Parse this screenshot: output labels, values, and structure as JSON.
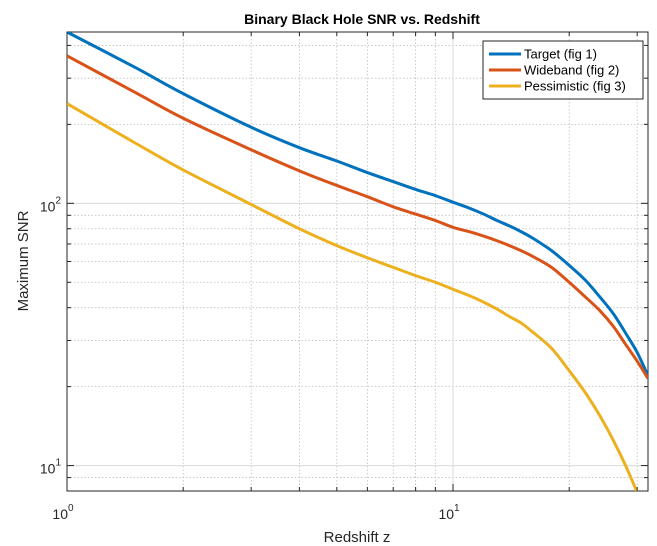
{
  "chart_data": {
    "type": "line",
    "title": "Binary Black Hole SNR vs. Redshift",
    "xlabel": "Redshift z",
    "ylabel": "Maximum SNR",
    "xscale": "log",
    "yscale": "log",
    "xlim": [
      1,
      32
    ],
    "ylim": [
      8,
      450
    ],
    "grid": true,
    "legend_position": "top-right",
    "x_ticks": [
      {
        "value": 1,
        "base": "10",
        "exp": "0"
      },
      {
        "value": 10,
        "base": "10",
        "exp": "1"
      }
    ],
    "y_ticks": [
      {
        "value": 10,
        "base": "10",
        "exp": "1"
      },
      {
        "value": 100,
        "base": "10",
        "exp": "2"
      }
    ],
    "series": [
      {
        "name": "Target (fig 1)",
        "color": "#0072BD",
        "points": [
          [
            1,
            450
          ],
          [
            1.5,
            330
          ],
          [
            2,
            262
          ],
          [
            3,
            195
          ],
          [
            4,
            163
          ],
          [
            5,
            145
          ],
          [
            6,
            131
          ],
          [
            7,
            121
          ],
          [
            8,
            113
          ],
          [
            9,
            107
          ],
          [
            10,
            101
          ],
          [
            11,
            96
          ],
          [
            12,
            91
          ],
          [
            13,
            86
          ],
          [
            14,
            82
          ],
          [
            15,
            78
          ],
          [
            16,
            74
          ],
          [
            18,
            66
          ],
          [
            20,
            58
          ],
          [
            22,
            51
          ],
          [
            24,
            44
          ],
          [
            26,
            38
          ],
          [
            28,
            32
          ],
          [
            30,
            27
          ],
          [
            32,
            22
          ]
        ]
      },
      {
        "name": "Wideband (fig 2)",
        "color": "#D95319",
        "points": [
          [
            1,
            365
          ],
          [
            1.5,
            265
          ],
          [
            2,
            211
          ],
          [
            3,
            160
          ],
          [
            4,
            133
          ],
          [
            5,
            117
          ],
          [
            6,
            106
          ],
          [
            7,
            97
          ],
          [
            8,
            91
          ],
          [
            9,
            86
          ],
          [
            10,
            81
          ],
          [
            11,
            78
          ],
          [
            12,
            75
          ],
          [
            13,
            72
          ],
          [
            14,
            69
          ],
          [
            15,
            66
          ],
          [
            16,
            63
          ],
          [
            18,
            57
          ],
          [
            20,
            50
          ],
          [
            22,
            44
          ],
          [
            24,
            39
          ],
          [
            26,
            34
          ],
          [
            28,
            29
          ],
          [
            30,
            25
          ],
          [
            32,
            21.5
          ]
        ]
      },
      {
        "name": "Pessimistic (fig 3)",
        "color": "#EDB120",
        "points": [
          [
            1,
            240
          ],
          [
            1.5,
            170
          ],
          [
            2,
            134
          ],
          [
            3,
            99
          ],
          [
            4,
            80
          ],
          [
            5,
            69
          ],
          [
            6,
            62
          ],
          [
            7,
            57
          ],
          [
            8,
            53
          ],
          [
            9,
            50
          ],
          [
            10,
            47
          ],
          [
            11,
            44.5
          ],
          [
            12,
            42
          ],
          [
            13,
            39.5
          ],
          [
            14,
            37
          ],
          [
            15,
            35
          ],
          [
            16,
            32.5
          ],
          [
            18,
            28
          ],
          [
            20,
            23
          ],
          [
            22,
            19
          ],
          [
            24,
            15.5
          ],
          [
            26,
            12.5
          ],
          [
            28,
            10
          ],
          [
            30,
            7.9
          ]
        ]
      }
    ]
  }
}
